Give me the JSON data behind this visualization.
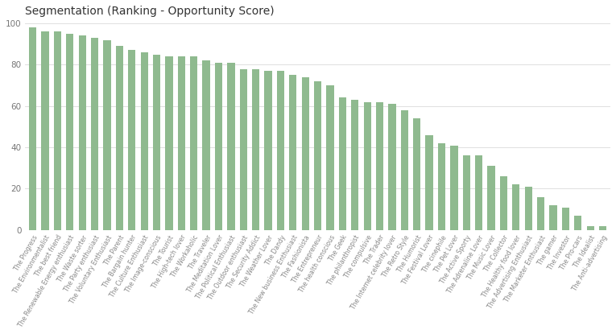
{
  "title": "Segmentation (Ranking - Opportunity Score)",
  "bar_color": "#8fba8f",
  "background_color": "#ffffff",
  "grid_color": "#e0e0e0",
  "categories": [
    "The Progress",
    "The Environmentalist",
    "The best friend",
    "The Renewable Energy enthusiast",
    "The Waste sorter",
    "The Party enthusiast",
    "The Voluntary Enthusiast",
    "The Parent",
    "The Bargain hunter",
    "The Culture Enthusiast",
    "The Image-conscious",
    "The Tourist",
    "The High-tech lover",
    "The Workaholic",
    "The Traveler",
    "The Meditation Lover",
    "The Political Enthusiast",
    "The Outdoor enthusiast",
    "The Security Addict",
    "The Weather Lover",
    "The Dandy",
    "The New business Enthusiast",
    "The Fashionista",
    "The Entrepreneur",
    "The health conscious",
    "The Geek",
    "The philanthropist",
    "The compulsive",
    "The Trader",
    "The Internet celebrity lover",
    "The Retro Style",
    "The Humorist",
    "The Festival Lover",
    "The cinephile",
    "The Pet Lover",
    "The Active Sporty",
    "The Adrenaline Lover",
    "The Music Lover",
    "The Collector",
    "The Healthy food lover",
    "The Advertising Enthusiast",
    "The Marketer Enthusiast",
    "The gamer",
    "The Investor",
    "The Pro-cars",
    "The Idealist",
    "The Anti-advertising"
  ],
  "values": [
    98,
    96,
    96,
    95,
    94,
    93,
    92,
    89,
    87,
    86,
    85,
    84,
    84,
    84,
    82,
    81,
    81,
    78,
    78,
    77,
    77,
    75,
    74,
    72,
    70,
    64,
    63,
    62,
    62,
    61,
    58,
    54,
    46,
    42,
    41,
    36,
    36,
    31,
    26,
    22,
    21,
    16,
    12,
    11,
    7,
    2,
    2
  ],
  "ylim": [
    0,
    100
  ],
  "yticks": [
    0,
    20,
    40,
    60,
    80,
    100
  ],
  "label_fontsize": 5.5,
  "title_fontsize": 10,
  "bar_width": 0.6,
  "label_rotation": 60
}
